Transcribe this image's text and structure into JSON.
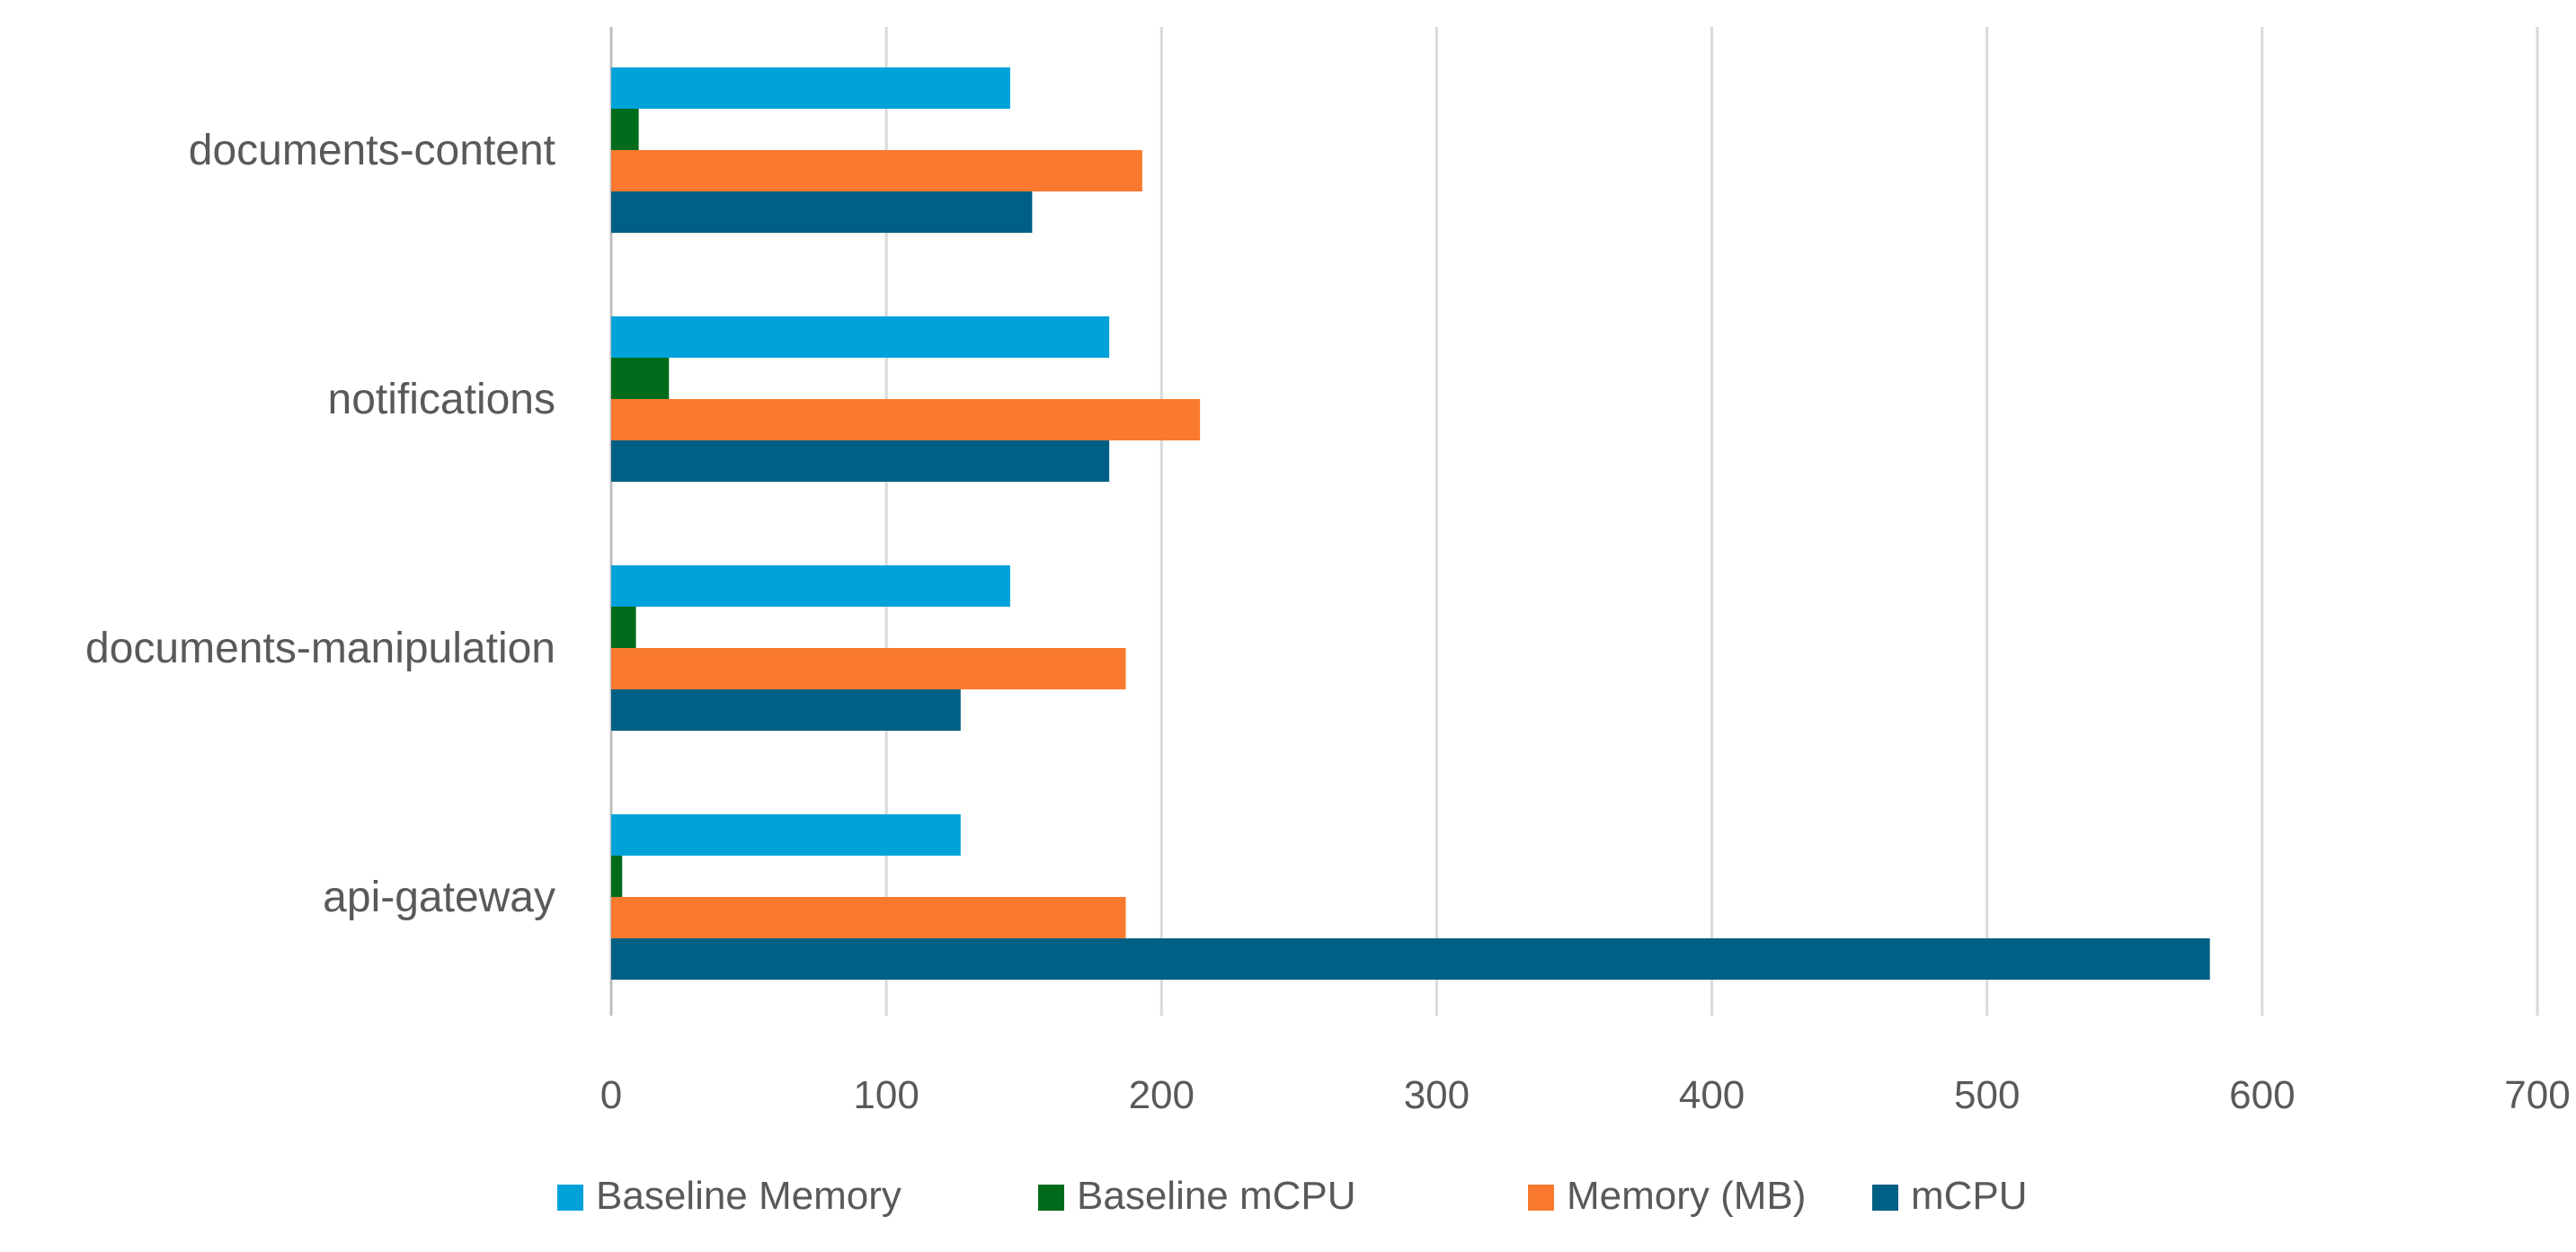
{
  "chart_data": {
    "type": "bar",
    "orientation": "horizontal",
    "title": "",
    "xlabel": "",
    "ylabel": "",
    "categories": [
      "documents-content",
      "notifications",
      "documents-manipulation",
      "api-gateway"
    ],
    "xlim": [
      0,
      700
    ],
    "x_ticks": [
      0,
      100,
      200,
      300,
      400,
      500,
      600,
      700
    ],
    "grid": "vertical",
    "legend_position": "bottom",
    "series": [
      {
        "name": "Baseline Memory",
        "color": "#00A2DA",
        "values": [
          145,
          181,
          145,
          127
        ]
      },
      {
        "name": "Baseline mCPU",
        "color": "#006B1A",
        "values": [
          10,
          21,
          9,
          4
        ]
      },
      {
        "name": "Memory (MB)",
        "color": "#F97A2E",
        "values": [
          193,
          214,
          187,
          187
        ]
      },
      {
        "name": "mCPU",
        "color": "#005F84",
        "values": [
          153,
          181,
          127,
          581
        ]
      }
    ]
  }
}
